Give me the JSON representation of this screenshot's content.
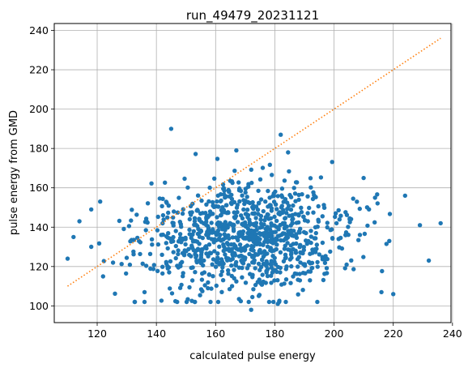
{
  "chart_data": {
    "type": "scatter",
    "title": "run_49479_20231121",
    "xlabel": "calculated pulse energy",
    "ylabel": "pulse energy from GMD",
    "xlim": [
      105.5,
      239.5
    ],
    "ylim": [
      91.5,
      243.5
    ],
    "xticks": [
      120,
      140,
      160,
      180,
      200,
      220,
      240
    ],
    "yticks": [
      100,
      120,
      140,
      160,
      180,
      200,
      220,
      240
    ],
    "grid": true,
    "colors": {
      "points": "#1f77b4",
      "line": "#ff7f0e",
      "grid": "#b0b0b0"
    },
    "reference_line": {
      "style": "dotted",
      "x": [
        110,
        236
      ],
      "y": [
        110,
        236
      ]
    },
    "scatter": {
      "count": 1000,
      "x_mean": 170,
      "x_std": 17,
      "x_range": [
        110,
        236
      ],
      "y_mean": 135,
      "y_std": 14,
      "y_range": [
        98,
        190
      ],
      "notable_points": [
        [
          110,
          124
        ],
        [
          114,
          143
        ],
        [
          118,
          149
        ],
        [
          118,
          130
        ],
        [
          121,
          153
        ],
        [
          122,
          115
        ],
        [
          145,
          190
        ],
        [
          167,
          179
        ],
        [
          182,
          187
        ],
        [
          210,
          165
        ],
        [
          224,
          156
        ],
        [
          229,
          141
        ],
        [
          232,
          123
        ],
        [
          236,
          142
        ],
        [
          216,
          107
        ],
        [
          220,
          106
        ],
        [
          172,
          98
        ],
        [
          181,
          101
        ],
        [
          136,
          102
        ],
        [
          136,
          107
        ],
        [
          147,
          102
        ]
      ]
    }
  }
}
